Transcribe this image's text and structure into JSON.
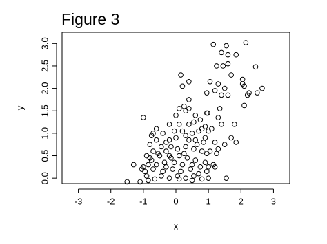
{
  "chart_data": {
    "type": "scatter",
    "title": "Figure 3",
    "x_label": "x",
    "y_label": "y",
    "x": [
      1.15,
      1.55,
      2.15,
      1.4,
      1.6,
      1.85,
      1.25,
      1.45,
      1.6,
      2.45,
      1.7,
      0.15,
      0.4,
      1.3,
      1.5,
      2.05,
      2.1,
      2.05,
      2.2,
      2.25,
      2.5,
      2.65,
      1.2,
      1.05,
      0.95,
      1.4,
      1.6,
      0.2,
      2.1,
      1.35,
      0.4,
      0.25,
      0.4,
      0.3,
      0.1,
      0.0,
      0.95,
      0.98,
      1.3,
      -1.0,
      0.6,
      1.8,
      1.85,
      1.7,
      1.4,
      1.1,
      0.9,
      0.8,
      0.7,
      0.5,
      0.4,
      0.2,
      0.1,
      -0.2,
      -0.4,
      -0.6,
      -0.7,
      -0.75,
      -0.6,
      -0.3,
      -0.2,
      0.0,
      0.3,
      0.6,
      0.9,
      1.2,
      1.5,
      1.3,
      1.05,
      0.8,
      0.55,
      0.3,
      0.05,
      -0.15,
      -0.45,
      -0.7,
      -0.9,
      -0.8,
      -0.5,
      -0.2,
      0.1,
      0.35,
      0.6,
      0.9,
      1.15,
      1.0,
      0.75,
      0.5,
      0.2,
      -0.05,
      -0.35,
      -0.6,
      -0.85,
      -1.0,
      -1.3,
      -1.05,
      -0.7,
      -0.4,
      -0.1,
      0.15,
      0.45,
      0.7,
      0.95,
      1.2,
      1.55,
      1.0,
      0.8,
      0.55,
      0.3,
      0.05,
      -0.2,
      -0.45,
      -0.65,
      -0.9,
      -0.85,
      -1.1,
      -1.5,
      -0.95,
      -0.75,
      -0.3,
      0.25,
      0.65,
      0.85,
      0.4,
      -0.05,
      0.55,
      0.75,
      1.0,
      -0.3,
      0.1,
      0.5,
      -0.55,
      -0.8,
      -0.15,
      1.25,
      0.95
    ],
    "y": [
      2.98,
      2.95,
      3.02,
      2.8,
      2.75,
      2.75,
      2.5,
      2.5,
      2.55,
      2.48,
      2.3,
      2.3,
      2.15,
      2.1,
      2.0,
      2.1,
      2.05,
      2.2,
      1.85,
      1.9,
      1.9,
      2.0,
      1.95,
      2.15,
      1.9,
      1.85,
      1.85,
      2.05,
      1.62,
      1.55,
      1.75,
      1.6,
      1.55,
      1.5,
      1.55,
      1.4,
      1.45,
      1.45,
      1.35,
      1.35,
      1.4,
      1.2,
      0.8,
      0.9,
      1.2,
      1.1,
      1.15,
      1.1,
      1.05,
      1.0,
      1.2,
      1.05,
      1.2,
      1.2,
      1.0,
      1.1,
      1.0,
      0.95,
      0.85,
      0.8,
      0.85,
      0.9,
      0.95,
      0.85,
      0.9,
      0.8,
      0.75,
      0.65,
      0.6,
      0.6,
      0.65,
      0.7,
      0.65,
      0.7,
      0.7,
      0.6,
      0.5,
      0.45,
      0.5,
      0.5,
      0.5,
      0.45,
      0.4,
      0.35,
      0.3,
      0.25,
      0.25,
      0.3,
      0.3,
      0.35,
      0.35,
      0.3,
      0.3,
      0.25,
      0.3,
      0.2,
      0.2,
      0.15,
      0.2,
      0.15,
      0.2,
      0.1,
      0.15,
      0.25,
      0.0,
      0.0,
      -0.02,
      0.05,
      0.0,
      0.05,
      0.0,
      0.05,
      -0.02,
      0.05,
      -0.05,
      -0.08,
      -0.08,
      0.15,
      0.4,
      0.6,
      0.55,
      0.75,
      0.8,
      0.85,
      1.05,
      1.25,
      1.3,
      1.05,
      0.25,
      -0.02,
      -0.05,
      0.55,
      0.75,
      0.45,
      0.55,
      0.55
    ],
    "color": "#000000",
    "xlim": [
      -3.5,
      3.5
    ],
    "xticks": [
      -3,
      -2,
      -1,
      0,
      1,
      2,
      3
    ],
    "ylim": [
      -0.12,
      3.25
    ],
    "yticks": [
      {
        "value": 0,
        "label": "0.0"
      },
      {
        "value": 0.5,
        "label": "0.5"
      },
      {
        "value": 1,
        "label": "1.0"
      },
      {
        "value": 1.5,
        "label": "1.5"
      },
      {
        "value": 2,
        "label": "2.0"
      },
      {
        "value": 2.5,
        "label": "2.5"
      },
      {
        "value": 3,
        "label": "3.0"
      }
    ]
  }
}
